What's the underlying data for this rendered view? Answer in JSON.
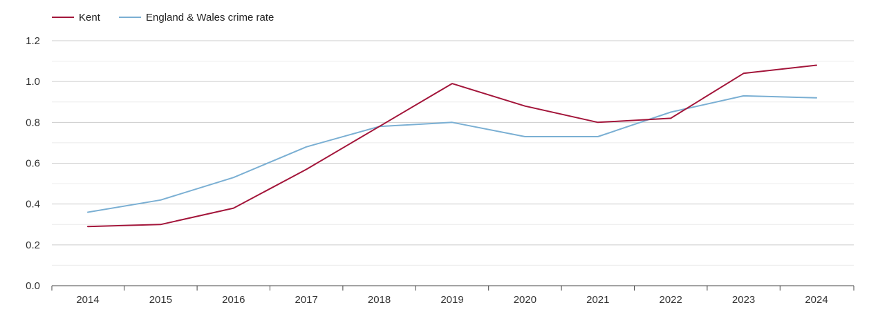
{
  "chart_data": {
    "type": "line",
    "title": "",
    "xlabel": "",
    "ylabel": "",
    "x": [
      "2014",
      "2015",
      "2016",
      "2017",
      "2018",
      "2019",
      "2020",
      "2021",
      "2022",
      "2023",
      "2024"
    ],
    "ylim": [
      0,
      1.2
    ],
    "yticks": [
      "0.0",
      "0.2",
      "0.4",
      "0.6",
      "0.8",
      "1.0",
      "1.2"
    ],
    "grid": true,
    "legend_position": "top-left",
    "series": [
      {
        "name": "Kent",
        "color": "#a3153a",
        "values": [
          0.29,
          0.3,
          0.38,
          0.57,
          0.78,
          0.99,
          0.88,
          0.8,
          0.82,
          1.04,
          1.08
        ]
      },
      {
        "name": "England & Wales crime rate",
        "color": "#7aafd3",
        "values": [
          0.36,
          0.42,
          0.53,
          0.68,
          0.78,
          0.8,
          0.73,
          0.73,
          0.85,
          0.93,
          0.92
        ]
      }
    ]
  }
}
